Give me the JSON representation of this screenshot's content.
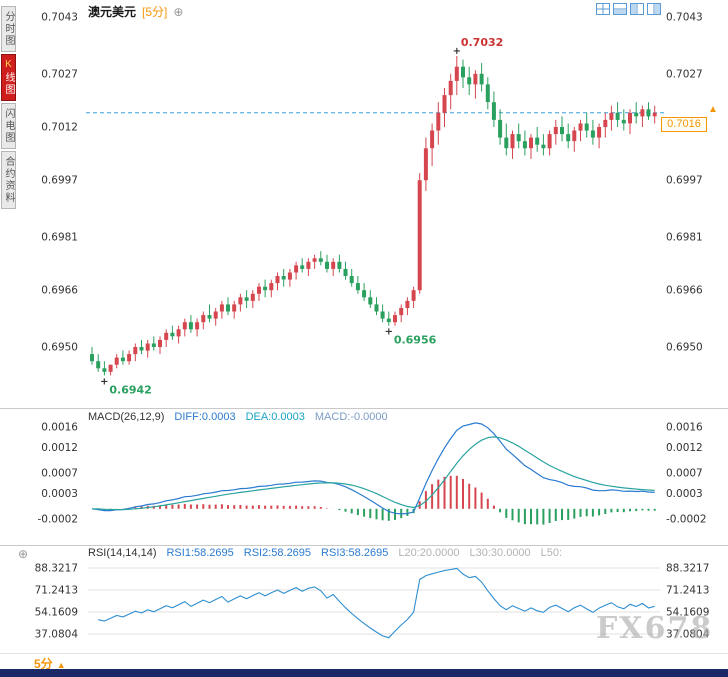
{
  "colors": {
    "up": "#d6464f",
    "down": "#2aa05f",
    "hist_up": "#d6464f",
    "hist_down": "#2aa05f",
    "dash_line": "#3aa0d8",
    "accent_orange": "#f5960a",
    "active_tab": "#cf1e1e",
    "bottom_bar": "#1b2a66",
    "diff_line": "#2b7bd0",
    "dea_line": "#2aa3a0",
    "rsi_line": "#2e8fd0",
    "ann_high": "#cc3333",
    "ann_low": "#2aa05f",
    "label_blue": "#2b7bd0",
    "label_teal": "#19a3c4",
    "label_slate": "#7a9cc6",
    "label_gray": "#b3b3b3"
  },
  "sidebar": {
    "items": [
      {
        "label": "分时图",
        "active": false
      },
      {
        "label": "K线图",
        "active": true
      },
      {
        "label": "闪电图",
        "active": false
      },
      {
        "label": "合约资料",
        "active": false
      }
    ]
  },
  "header": {
    "symbol": "澳元美元",
    "period_tag": "[5分]",
    "plus_icon": "⊕"
  },
  "toolbar_icons": [
    "layout-quad-icon",
    "layout-horizontal-split-icon",
    "layout-left-pane-icon",
    "layout-right-pane-icon"
  ],
  "main_chart": {
    "last_price_label": "0.7016",
    "arrow": "▲"
  },
  "macd": {
    "title": "MACD(26,12,9)",
    "diff": "DIFF:0.0003",
    "dea": "DEA:0.0003",
    "macd": "MACD:-0.0000"
  },
  "rsi": {
    "settings_icon": "⊕",
    "title": "RSI(14,14,14)",
    "rsi1": "RSI1:58.2695",
    "rsi2": "RSI2:58.2695",
    "rsi3": "RSI3:58.2695",
    "l20": "L20:20.0000",
    "l30": "L30:30.0000",
    "l50": "L50:"
  },
  "footer": {
    "period": "5分",
    "arrow": "▲"
  },
  "watermark": "FX678",
  "chart_data": [
    {
      "type": "candlestick",
      "title": "澳元美元 5分",
      "x_unit": "5-minute bars",
      "y_axis_labels": [
        "0.7043",
        "0.7027",
        "0.7012",
        "0.6997",
        "0.6981",
        "0.6966",
        "0.6950"
      ],
      "last_price": 0.7016,
      "annotations": [
        {
          "text": "0.7032",
          "index": 59,
          "kind": "high"
        },
        {
          "text": "0.6942",
          "index": 2,
          "kind": "low"
        },
        {
          "text": "0.6956",
          "index": 48,
          "kind": "low"
        }
      ],
      "ohlc": [
        [
          0.6948,
          0.695,
          0.6945,
          0.6946
        ],
        [
          0.6946,
          0.6948,
          0.6943,
          0.6944
        ],
        [
          0.6944,
          0.6946,
          0.6942,
          0.6943
        ],
        [
          0.6943,
          0.6945,
          0.6942,
          0.6945
        ],
        [
          0.6945,
          0.6948,
          0.6944,
          0.6947
        ],
        [
          0.6947,
          0.6949,
          0.6945,
          0.6946
        ],
        [
          0.6946,
          0.6949,
          0.6945,
          0.6948
        ],
        [
          0.6948,
          0.6951,
          0.6946,
          0.695
        ],
        [
          0.695,
          0.6952,
          0.6948,
          0.6949
        ],
        [
          0.6949,
          0.6952,
          0.6947,
          0.6951
        ],
        [
          0.6951,
          0.6953,
          0.6949,
          0.695
        ],
        [
          0.695,
          0.6953,
          0.6948,
          0.6952
        ],
        [
          0.6952,
          0.6955,
          0.695,
          0.6954
        ],
        [
          0.6954,
          0.6956,
          0.6952,
          0.6953
        ],
        [
          0.6953,
          0.6956,
          0.6951,
          0.6955
        ],
        [
          0.6955,
          0.6958,
          0.6953,
          0.6957
        ],
        [
          0.6957,
          0.6959,
          0.6954,
          0.6955
        ],
        [
          0.6955,
          0.6958,
          0.6953,
          0.6957
        ],
        [
          0.6957,
          0.696,
          0.6955,
          0.6959
        ],
        [
          0.6959,
          0.6962,
          0.6957,
          0.6958
        ],
        [
          0.6958,
          0.6961,
          0.6956,
          0.696
        ],
        [
          0.696,
          0.6963,
          0.6958,
          0.6962
        ],
        [
          0.6962,
          0.6964,
          0.6959,
          0.696
        ],
        [
          0.696,
          0.6963,
          0.6958,
          0.6962
        ],
        [
          0.6962,
          0.6965,
          0.696,
          0.6964
        ],
        [
          0.6964,
          0.6966,
          0.6961,
          0.6963
        ],
        [
          0.6963,
          0.6966,
          0.6961,
          0.6965
        ],
        [
          0.6965,
          0.6968,
          0.6963,
          0.6967
        ],
        [
          0.6967,
          0.6969,
          0.6964,
          0.6966
        ],
        [
          0.6966,
          0.6969,
          0.6964,
          0.6968
        ],
        [
          0.6968,
          0.6971,
          0.6966,
          0.697
        ],
        [
          0.697,
          0.6972,
          0.6967,
          0.6969
        ],
        [
          0.6969,
          0.6972,
          0.6967,
          0.6971
        ],
        [
          0.6971,
          0.6974,
          0.6969,
          0.6973
        ],
        [
          0.6973,
          0.6975,
          0.6971,
          0.6972
        ],
        [
          0.6972,
          0.6975,
          0.697,
          0.6974
        ],
        [
          0.6974,
          0.6976,
          0.6972,
          0.6975
        ],
        [
          0.6975,
          0.6977,
          0.6973,
          0.6974
        ],
        [
          0.6974,
          0.6976,
          0.6971,
          0.6972
        ],
        [
          0.6972,
          0.6975,
          0.697,
          0.6974
        ],
        [
          0.6974,
          0.6976,
          0.6971,
          0.6972
        ],
        [
          0.6972,
          0.6974,
          0.6969,
          0.697
        ],
        [
          0.697,
          0.6972,
          0.6967,
          0.6968
        ],
        [
          0.6968,
          0.697,
          0.6965,
          0.6966
        ],
        [
          0.6966,
          0.6968,
          0.6963,
          0.6964
        ],
        [
          0.6964,
          0.6966,
          0.6961,
          0.6962
        ],
        [
          0.6962,
          0.6964,
          0.6959,
          0.696
        ],
        [
          0.696,
          0.6962,
          0.6957,
          0.6958
        ],
        [
          0.6958,
          0.696,
          0.6956,
          0.6957
        ],
        [
          0.6957,
          0.696,
          0.6956,
          0.6959
        ],
        [
          0.6959,
          0.6962,
          0.6957,
          0.6961
        ],
        [
          0.6961,
          0.6964,
          0.6959,
          0.6963
        ],
        [
          0.6963,
          0.6967,
          0.6961,
          0.6966
        ],
        [
          0.6966,
          0.6999,
          0.6965,
          0.6997
        ],
        [
          0.6997,
          0.7009,
          0.6994,
          0.7006
        ],
        [
          0.7006,
          0.7013,
          0.7001,
          0.7011
        ],
        [
          0.7011,
          0.7019,
          0.7007,
          0.7016
        ],
        [
          0.7016,
          0.7023,
          0.7012,
          0.7021
        ],
        [
          0.7021,
          0.7027,
          0.7017,
          0.7025
        ],
        [
          0.7025,
          0.7032,
          0.7021,
          0.7029
        ],
        [
          0.7029,
          0.7031,
          0.7023,
          0.7026
        ],
        [
          0.7026,
          0.7029,
          0.7021,
          0.7024
        ],
        [
          0.7024,
          0.7028,
          0.702,
          0.7027
        ],
        [
          0.7027,
          0.703,
          0.7022,
          0.7024
        ],
        [
          0.7024,
          0.7026,
          0.7017,
          0.7019
        ],
        [
          0.7019,
          0.7022,
          0.7012,
          0.7014
        ],
        [
          0.7014,
          0.7017,
          0.7007,
          0.7009
        ],
        [
          0.7009,
          0.7013,
          0.7004,
          0.7006
        ],
        [
          0.7006,
          0.7011,
          0.7003,
          0.701
        ],
        [
          0.701,
          0.7013,
          0.7006,
          0.7008
        ],
        [
          0.7008,
          0.7011,
          0.7004,
          0.7006
        ],
        [
          0.7006,
          0.701,
          0.7003,
          0.7009
        ],
        [
          0.7009,
          0.7012,
          0.7005,
          0.7007
        ],
        [
          0.7007,
          0.701,
          0.7004,
          0.7006
        ],
        [
          0.7006,
          0.7011,
          0.7004,
          0.701
        ],
        [
          0.701,
          0.7014,
          0.7007,
          0.7012
        ],
        [
          0.7012,
          0.7015,
          0.7008,
          0.701
        ],
        [
          0.701,
          0.7013,
          0.7006,
          0.7008
        ],
        [
          0.7008,
          0.7012,
          0.7005,
          0.7011
        ],
        [
          0.7011,
          0.7014,
          0.7008,
          0.7013
        ],
        [
          0.7013,
          0.7016,
          0.7009,
          0.7011
        ],
        [
          0.7011,
          0.7014,
          0.7007,
          0.7009
        ],
        [
          0.7009,
          0.7013,
          0.7006,
          0.7012
        ],
        [
          0.7012,
          0.7016,
          0.7009,
          0.7014
        ],
        [
          0.7014,
          0.7018,
          0.7011,
          0.7016
        ],
        [
          0.7016,
          0.7019,
          0.7012,
          0.7014
        ],
        [
          0.7014,
          0.7017,
          0.7011,
          0.7013
        ],
        [
          0.7013,
          0.7017,
          0.701,
          0.7016
        ],
        [
          0.7016,
          0.7019,
          0.7013,
          0.7015
        ],
        [
          0.7015,
          0.7018,
          0.7012,
          0.7017
        ],
        [
          0.7017,
          0.7019,
          0.7014,
          0.7015
        ],
        [
          0.7015,
          0.7018,
          0.7013,
          0.7016
        ]
      ]
    },
    {
      "type": "bar",
      "subtype": "macd-histogram-with-lines",
      "title": "MACD(26,12,9)",
      "params": [
        26,
        12,
        9
      ],
      "readout": {
        "DIFF": "0.0003",
        "DEA": "0.0003",
        "MACD": "-0.0000"
      },
      "y_axis_labels": [
        "0.0016",
        "0.0012",
        "0.0007",
        "0.0003",
        "-0.0002"
      ],
      "derived_from": "EMA(12)-EMA(26) of ohlc closes, DEA=EMA(9) of DIFF, histogram=DIFF-DEA"
    },
    {
      "type": "line",
      "title": "RSI(14,14,14)",
      "params": [
        14,
        14,
        14
      ],
      "readout": {
        "RSI1": "58.2695",
        "RSI2": "58.2695",
        "RSI3": "58.2695",
        "L20": "20.0000",
        "L30": "30.0000",
        "L50": ""
      },
      "y_axis_labels": [
        "88.3217",
        "71.2413",
        "54.1609",
        "37.0804"
      ],
      "derived_from": "Wilder RSI(14) of ohlc closes; three identical-period lines overlap"
    }
  ]
}
